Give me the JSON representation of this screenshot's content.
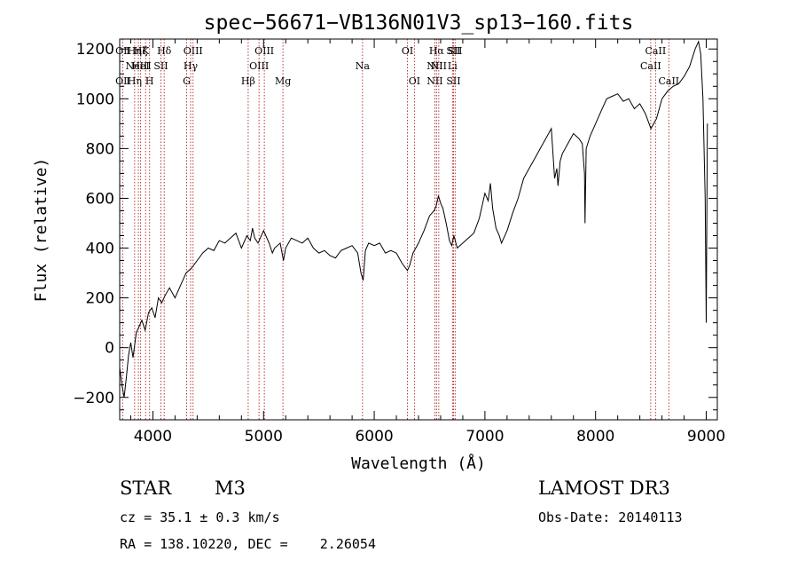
{
  "chart_data": {
    "type": "line",
    "title": "spec−56671−VB136N01V3_sp13−160.fits",
    "xlabel": "Wavelength (Å)",
    "ylabel": "Flux (relative)",
    "xlim": [
      3700,
      9100
    ],
    "ylim": [
      -290,
      1240
    ],
    "xticks": [
      4000,
      5000,
      6000,
      7000,
      8000,
      9000
    ],
    "yticks": [
      -200,
      0,
      200,
      400,
      600,
      800,
      1000,
      1200
    ],
    "ytick_labels": [
      "−200",
      "0",
      "200",
      "400",
      "600",
      "800",
      "1000",
      "1200"
    ],
    "spectrum": {
      "x": [
        3700,
        3720,
        3740,
        3760,
        3780,
        3800,
        3820,
        3850,
        3880,
        3900,
        3930,
        3960,
        3990,
        4020,
        4050,
        4080,
        4110,
        4150,
        4200,
        4250,
        4300,
        4350,
        4400,
        4450,
        4500,
        4550,
        4600,
        4650,
        4700,
        4750,
        4800,
        4850,
        4880,
        4900,
        4920,
        4950,
        5000,
        5050,
        5080,
        5100,
        5150,
        5180,
        5200,
        5250,
        5300,
        5350,
        5400,
        5450,
        5500,
        5550,
        5600,
        5650,
        5700,
        5750,
        5800,
        5850,
        5880,
        5900,
        5920,
        5950,
        6000,
        6050,
        6100,
        6150,
        6200,
        6250,
        6300,
        6320,
        6350,
        6400,
        6450,
        6500,
        6540,
        6560,
        6580,
        6600,
        6620,
        6650,
        6680,
        6700,
        6720,
        6750,
        6800,
        6850,
        6900,
        6950,
        7000,
        7030,
        7050,
        7070,
        7100,
        7130,
        7150,
        7200,
        7250,
        7300,
        7350,
        7400,
        7450,
        7500,
        7550,
        7600,
        7630,
        7650,
        7660,
        7680,
        7700,
        7750,
        7800,
        7850,
        7880,
        7900,
        7905,
        7915,
        7950,
        8000,
        8050,
        8100,
        8150,
        8200,
        8250,
        8300,
        8350,
        8400,
        8450,
        8500,
        8550,
        8600,
        8650,
        8700,
        8750,
        8800,
        8850,
        8900,
        8930,
        8950,
        8970,
        8990,
        9000,
        9010
      ],
      "y": [
        -80,
        -150,
        -200,
        -120,
        -30,
        20,
        -40,
        60,
        90,
        110,
        70,
        140,
        160,
        120,
        200,
        180,
        210,
        240,
        200,
        250,
        300,
        320,
        350,
        380,
        400,
        390,
        430,
        420,
        440,
        460,
        400,
        450,
        430,
        480,
        440,
        420,
        470,
        420,
        380,
        400,
        420,
        350,
        400,
        440,
        430,
        420,
        440,
        400,
        380,
        390,
        370,
        360,
        390,
        400,
        410,
        380,
        300,
        270,
        390,
        420,
        410,
        420,
        380,
        390,
        380,
        340,
        310,
        330,
        380,
        420,
        470,
        530,
        550,
        570,
        610,
        580,
        560,
        500,
        430,
        410,
        450,
        400,
        420,
        440,
        460,
        520,
        620,
        590,
        660,
        560,
        480,
        450,
        420,
        470,
        540,
        600,
        680,
        720,
        760,
        800,
        840,
        880,
        680,
        720,
        650,
        750,
        780,
        820,
        860,
        840,
        820,
        700,
        500,
        800,
        850,
        900,
        950,
        1000,
        1010,
        1020,
        990,
        1000,
        960,
        980,
        940,
        880,
        920,
        1000,
        1030,
        1050,
        1060,
        1090,
        1130,
        1200,
        1230,
        1180,
        1000,
        600,
        100,
        900
      ]
    },
    "emission_lines": [
      {
        "x": 3727,
        "top": "OⅡ",
        "mid": "",
        "bot": "OⅡ"
      },
      {
        "x": 3835,
        "top": "Hη",
        "mid": "",
        "bot": "Hη"
      },
      {
        "x": 3869,
        "top": "",
        "mid": "NeIII",
        "bot": ""
      },
      {
        "x": 3889,
        "top": "Hζ",
        "mid": "HeI",
        "bot": ""
      },
      {
        "x": 3934,
        "top": "K",
        "mid": "",
        "bot": ""
      },
      {
        "x": 3970,
        "top": "",
        "mid": "",
        "bot": "H"
      },
      {
        "x": 4072,
        "top": "",
        "mid": "SII",
        "bot": ""
      },
      {
        "x": 4102,
        "top": "Hδ",
        "mid": "",
        "bot": ""
      },
      {
        "x": 4305,
        "top": "",
        "mid": "",
        "bot": "G"
      },
      {
        "x": 4341,
        "top": "",
        "mid": "Hγ",
        "bot": ""
      },
      {
        "x": 4363,
        "top": "OIII",
        "mid": "",
        "bot": ""
      },
      {
        "x": 4861,
        "top": "",
        "mid": "",
        "bot": "Hβ"
      },
      {
        "x": 4959,
        "top": "",
        "mid": "OIII",
        "bot": ""
      },
      {
        "x": 5007,
        "top": "OIII",
        "mid": "",
        "bot": ""
      },
      {
        "x": 5175,
        "top": "",
        "mid": "",
        "bot": "Mg"
      },
      {
        "x": 5894,
        "top": "",
        "mid": "Na",
        "bot": ""
      },
      {
        "x": 6300,
        "top": "OI",
        "mid": "",
        "bot": ""
      },
      {
        "x": 6363,
        "top": "",
        "mid": "",
        "bot": "OI"
      },
      {
        "x": 6548,
        "top": "",
        "mid": "NII",
        "bot": "NII"
      },
      {
        "x": 6563,
        "top": "Hα",
        "mid": "",
        "bot": ""
      },
      {
        "x": 6583,
        "top": "",
        "mid": "NII",
        "bot": ""
      },
      {
        "x": 6707,
        "top": "",
        "mid": "Li",
        "bot": ""
      },
      {
        "x": 6716,
        "top": "SII",
        "mid": "",
        "bot": "SII"
      },
      {
        "x": 6731,
        "top": "SII",
        "mid": "",
        "bot": ""
      },
      {
        "x": 8498,
        "top": "",
        "mid": "CaII",
        "bot": ""
      },
      {
        "x": 8542,
        "top": "CaII",
        "mid": "",
        "bot": ""
      },
      {
        "x": 8662,
        "top": "",
        "mid": "",
        "bot": "CaII"
      }
    ]
  },
  "info": {
    "object_class": "STAR",
    "subclass": "M3",
    "survey": "LAMOST DR3",
    "redshift": "cz = 35.1 ± 0.3 km/s",
    "obs_date": "Obs-Date: 20140113",
    "coords": "RA = 138.10220, DEC =    2.26054"
  },
  "colors": {
    "spectrum": "#000000",
    "line_marker": "#b22222",
    "axes": "#000000",
    "background": "#ffffff"
  }
}
